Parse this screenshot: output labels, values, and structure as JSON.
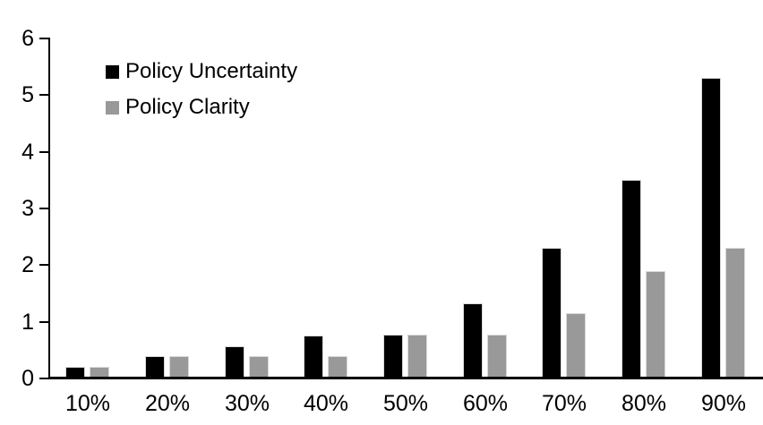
{
  "chart_data": {
    "type": "bar",
    "title": "",
    "xlabel": "",
    "ylabel": "",
    "categories": [
      "10%",
      "20%",
      "30%",
      "40%",
      "50%",
      "60%",
      "70%",
      "80%",
      "90%"
    ],
    "series": [
      {
        "name": "Policy Uncertainty",
        "color": "#000000",
        "values": [
          0.2,
          0.4,
          0.57,
          0.76,
          0.78,
          1.33,
          2.3,
          3.5,
          5.3
        ]
      },
      {
        "name": "Policy Clarity",
        "color": "#999999",
        "values": [
          0.2,
          0.4,
          0.4,
          0.4,
          0.78,
          0.78,
          1.15,
          1.9,
          2.3
        ]
      }
    ],
    "ylim": [
      0,
      6
    ],
    "y_ticks": [
      0,
      1,
      2,
      3,
      4,
      5,
      6
    ],
    "grid": false,
    "legend_position": "top-left-inside",
    "background_color": "#ffffff",
    "axis_color": "#000000"
  }
}
